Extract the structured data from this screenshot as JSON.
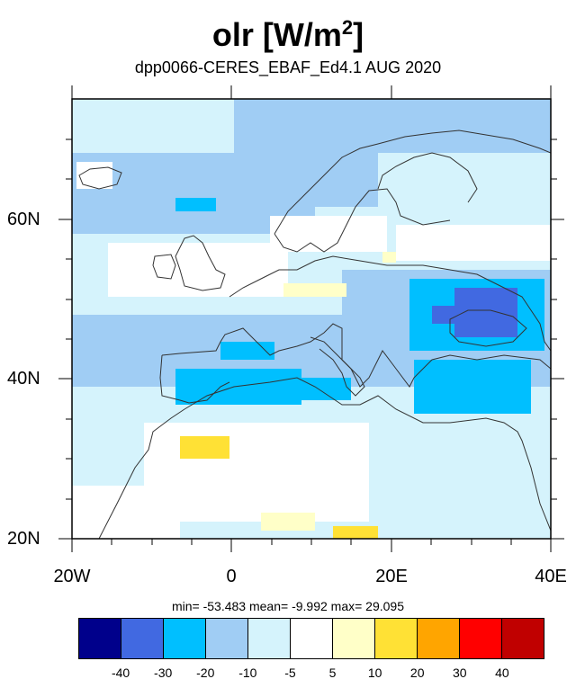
{
  "title": {
    "main": "olr [W/m",
    "sup": "2",
    "close": "]"
  },
  "subtitle": "dpp0066-CERES_EBAF_Ed4.1  AUG 2020",
  "stats": {
    "text": "min= -53.483  mean=  -9.992  max=  29.095",
    "min": -53.483,
    "mean": -9.992,
    "max": 29.095
  },
  "map": {
    "lon_range": [
      -20,
      40
    ],
    "lat_range": [
      20,
      75
    ],
    "x_ticks": [
      "20W",
      "0",
      "20E",
      "40E"
    ],
    "y_ticks": [
      "20N",
      "40N",
      "60N"
    ]
  },
  "colorbar": {
    "labels": [
      "-40",
      "-30",
      "-20",
      "-10",
      "-5",
      "5",
      "10",
      "20",
      "30",
      "40"
    ],
    "colors": [
      "#00008b",
      "#4169e1",
      "#00bfff",
      "#a0cdf4",
      "#d5f3fc",
      "#ffffff",
      "#ffffc8",
      "#ffe135",
      "#ffa500",
      "#ff0000",
      "#c00000"
    ]
  }
}
